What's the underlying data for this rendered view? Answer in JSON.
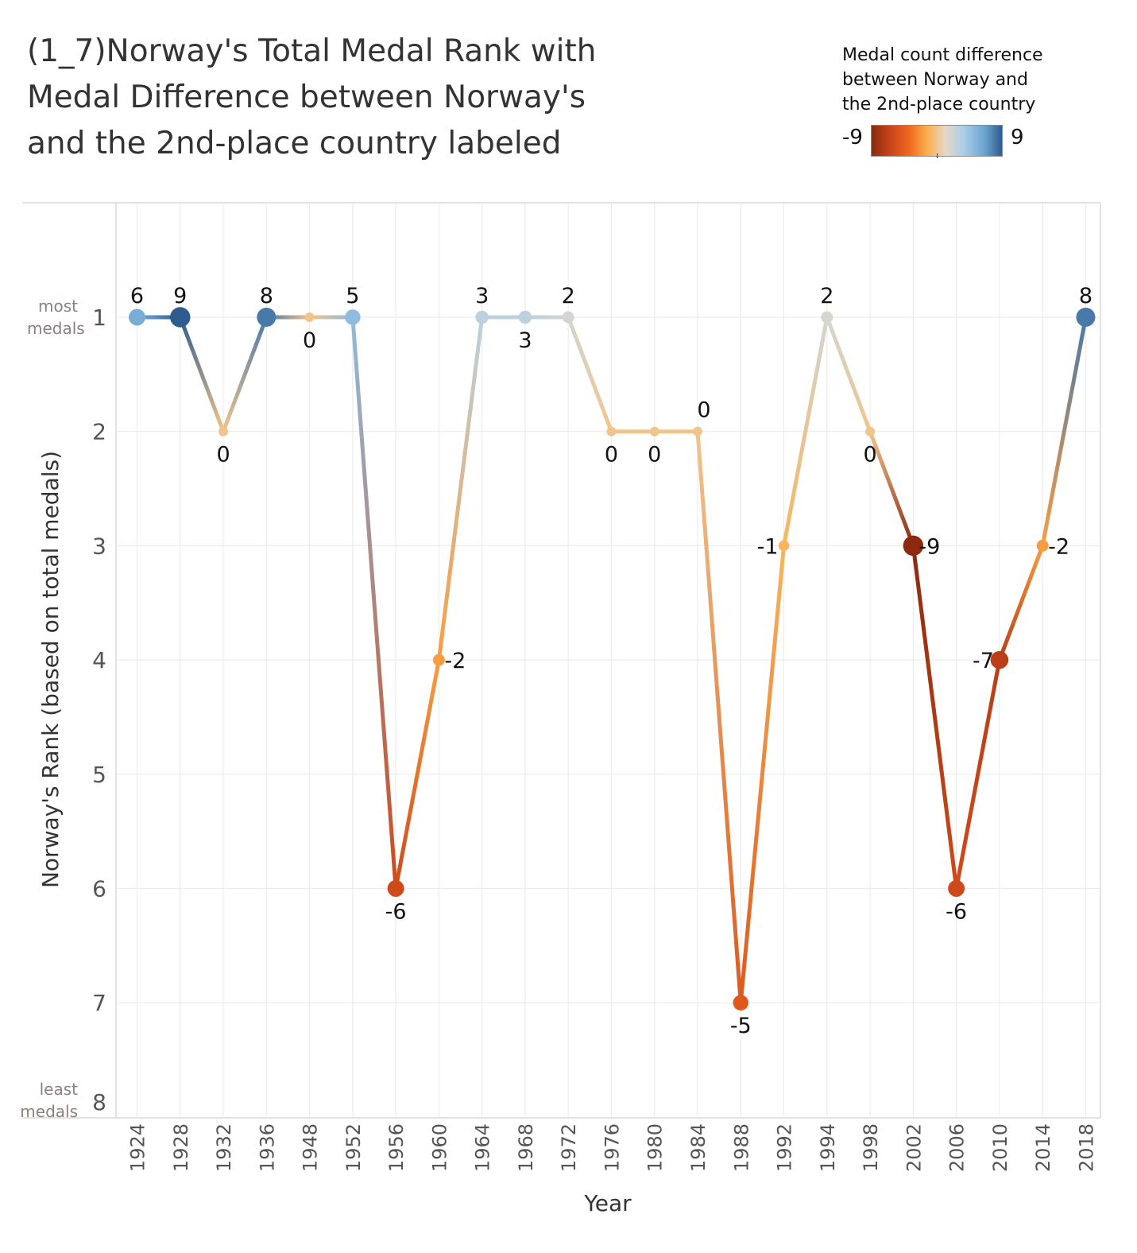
{
  "title_lines": [
    "(1_7)Norway's Total Medal Rank with",
    "Medal Difference between Norway's",
    "and the 2nd-place country  labeled"
  ],
  "legend": {
    "title_lines": [
      "Medal count difference",
      "between Norway and",
      " the 2nd-place country"
    ],
    "min_label": "-9",
    "max_label": "9",
    "colors": [
      "#8b2a0e",
      "#c8441a",
      "#f06a1e",
      "#fbb04f",
      "#e3d9c9",
      "#a9cde7",
      "#6fa6d3",
      "#2f5c8e"
    ]
  },
  "y_annot": {
    "top": [
      "most",
      "medals"
    ],
    "bottom": [
      "least",
      "medals"
    ]
  },
  "chart_data": {
    "type": "line",
    "title": "(1_7)Norway's Total Medal Rank with Medal Difference between Norway's and the 2nd-place country  labeled",
    "xlabel": "Year",
    "ylabel": "Norway's Rank (based on total medals)",
    "y_reversed": true,
    "ylim": [
      1,
      8
    ],
    "yticks": [
      1,
      2,
      3,
      4,
      5,
      6,
      7,
      8
    ],
    "grid": true,
    "x": [
      "1924",
      "1928",
      "1932",
      "1936",
      "1948",
      "1952",
      "1956",
      "1960",
      "1964",
      "1968",
      "1972",
      "1976",
      "1980",
      "1984",
      "1988",
      "1992",
      "1994",
      "1998",
      "2002",
      "2006",
      "2010",
      "2014",
      "2018"
    ],
    "series": [
      {
        "rank": [
          1,
          1,
          2,
          1,
          1,
          1,
          6,
          4,
          1,
          1,
          1,
          2,
          2,
          2,
          7,
          3,
          1,
          2,
          3,
          6,
          4,
          3,
          1
        ],
        "medal_difference": [
          6,
          9,
          0,
          8,
          0,
          5,
          -6,
          -2,
          3,
          3,
          2,
          0,
          0,
          0,
          -5,
          -1,
          2,
          0,
          -9,
          -6,
          -7,
          -2,
          8
        ],
        "labels": [
          "6",
          "9",
          "0",
          "8",
          "0",
          "5",
          "-6",
          "-2",
          "3",
          "3",
          "2",
          "0",
          "0",
          "0",
          "-5",
          "-1",
          "2",
          "0",
          "-9",
          "-6",
          "-7",
          "-2",
          "8"
        ]
      }
    ]
  }
}
